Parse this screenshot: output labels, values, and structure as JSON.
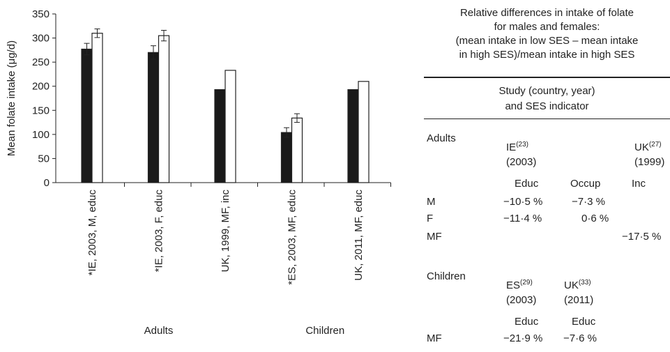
{
  "chart_data": {
    "type": "bar",
    "ylabel": "Mean folate intake (μg/d)",
    "ylim": [
      0,
      350
    ],
    "yticks": [
      0,
      50,
      100,
      150,
      200,
      250,
      300,
      350
    ],
    "categories": [
      "*IE, 2003, M, educ",
      "*IE, 2003, F, educ",
      "UK, 1999, MF, inc",
      "*ES, 2003, MF, educ",
      "UK, 2011, MF, educ"
    ],
    "groups": [
      {
        "label": "Adults",
        "categories": [
          0,
          1,
          2
        ]
      },
      {
        "label": "Children",
        "categories": [
          3,
          4
        ]
      }
    ],
    "series": [
      {
        "values": [
          277,
          270,
          193,
          104,
          193
        ],
        "errors": [
          12,
          14,
          null,
          10,
          null
        ],
        "color": "#1a1a1a"
      },
      {
        "values": [
          310,
          305,
          233,
          134,
          210
        ],
        "errors": [
          9,
          11,
          null,
          9,
          null
        ],
        "color": "#ffffff"
      }
    ]
  },
  "table": {
    "title_lines": [
      "Relative differences in intake of folate",
      "for males and females:",
      "(mean intake in low SES – mean intake",
      "in high SES)/mean intake in high SES"
    ],
    "header_lines": [
      "Study (country, year)",
      "and SES indicator"
    ],
    "adults": {
      "label": "Adults",
      "studies": [
        {
          "code": "IE",
          "ref": "(23)",
          "year": "(2003)"
        },
        {
          "code": "UK",
          "ref": "(27)",
          "year": "(1999)"
        }
      ],
      "indicators": [
        "Educ",
        "Occup",
        "Inc"
      ],
      "rows": [
        {
          "label": "M",
          "values": [
            "−10·5 %",
            "−7·3 %",
            ""
          ]
        },
        {
          "label": "F",
          "values": [
            "−11·4 %",
            "0·6 %",
            ""
          ]
        },
        {
          "label": "MF",
          "values": [
            "",
            "",
            "−17·5 %"
          ]
        }
      ]
    },
    "children": {
      "label": "Children",
      "studies": [
        {
          "code": "ES",
          "ref": "(29)",
          "year": "(2003)"
        },
        {
          "code": "UK",
          "ref": "(33)",
          "year": "(2011)"
        }
      ],
      "indicators": [
        "Educ",
        "Educ"
      ],
      "rows": [
        {
          "label": "MF",
          "values": [
            "−21·9 %",
            "−7·6 %"
          ]
        }
      ]
    }
  }
}
